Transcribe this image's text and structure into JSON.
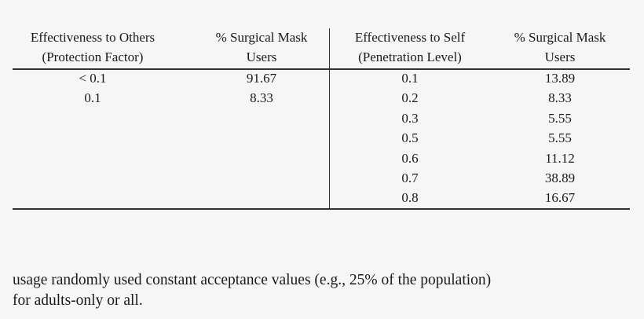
{
  "table": {
    "left": {
      "headers": [
        [
          "Effectiveness to Others",
          "(Protection Factor)"
        ],
        [
          "% Surgical Mask",
          "Users"
        ]
      ],
      "rows": [
        [
          "< 0.1",
          "91.67"
        ],
        [
          "0.1",
          "8.33"
        ]
      ]
    },
    "right": {
      "headers": [
        [
          "Effectiveness to Self",
          "(Penetration Level)"
        ],
        [
          "% Surgical Mask",
          "Users"
        ]
      ],
      "rows": [
        [
          "0.1",
          "13.89"
        ],
        [
          "0.2",
          "8.33"
        ],
        [
          "0.3",
          "5.55"
        ],
        [
          "0.5",
          "5.55"
        ],
        [
          "0.6",
          "11.12"
        ],
        [
          "0.7",
          "38.89"
        ],
        [
          "0.8",
          "16.67"
        ]
      ]
    }
  },
  "paragraph": [
    "usage randomly used constant acceptance values (e.g., 25% of the population)",
    "for adults-only or all."
  ]
}
